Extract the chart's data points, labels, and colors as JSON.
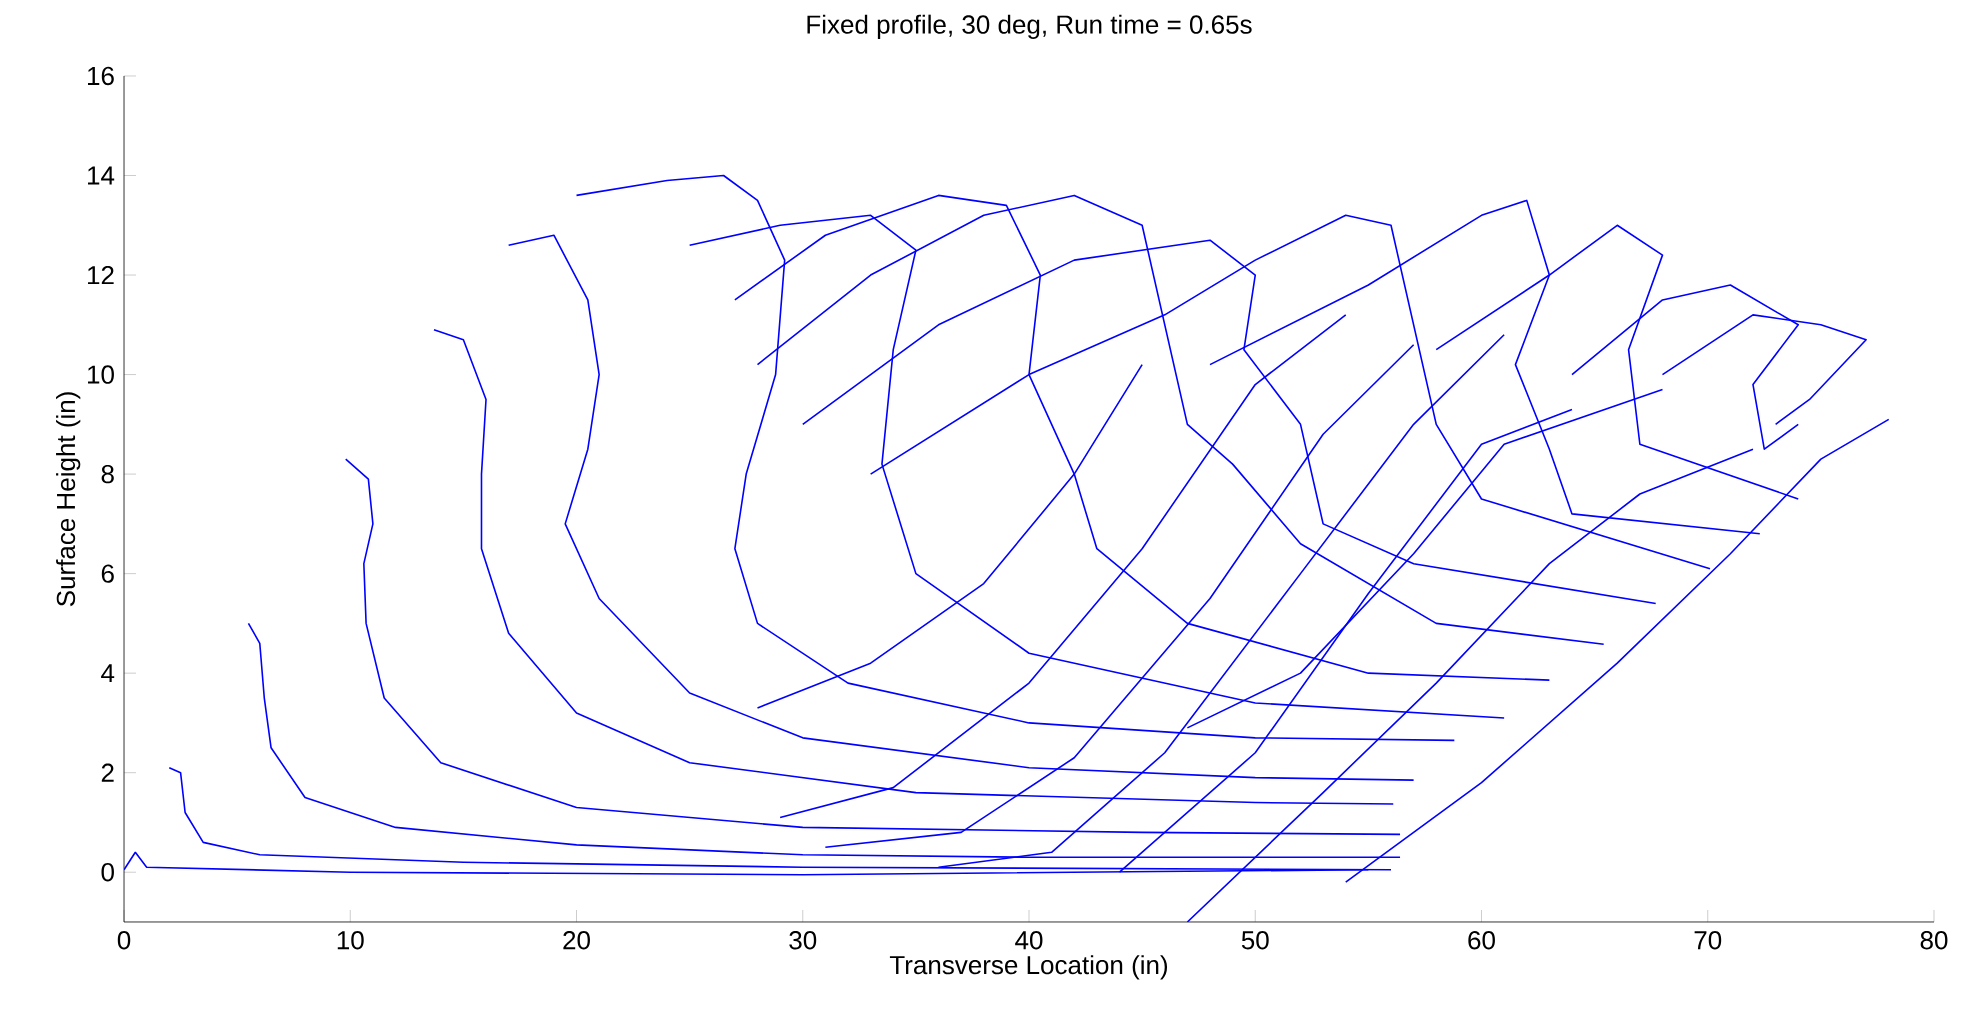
{
  "chart_data": {
    "type": "line",
    "title": "Fixed profile, 30 deg, Run time = 0.65s",
    "xlabel": "Transverse Location (in)",
    "ylabel": "Surface Height (in)",
    "xlim": [
      0,
      80
    ],
    "ylim": [
      -1,
      16
    ],
    "xticks": [
      0,
      10,
      20,
      30,
      40,
      50,
      60,
      70,
      80
    ],
    "yticks": [
      0,
      2,
      4,
      6,
      8,
      10,
      12,
      14,
      16
    ],
    "color": "#0000ff",
    "series": [
      {
        "x": [
          0,
          0.5,
          1,
          10,
          30,
          55
        ],
        "values": [
          0.05,
          0.4,
          0.1,
          0,
          -0.05,
          0.05
        ]
      },
      {
        "x": [
          2.0,
          2.5,
          2.7,
          3.5,
          6,
          15,
          30,
          56
        ],
        "values": [
          2.1,
          2.0,
          1.2,
          0.6,
          0.35,
          0.2,
          0.1,
          0.05
        ]
      },
      {
        "x": [
          5.5,
          6,
          6.2,
          6.5,
          8,
          12,
          20,
          30,
          40,
          56.4
        ],
        "values": [
          5.0,
          4.6,
          3.5,
          2.5,
          1.5,
          0.9,
          0.55,
          0.35,
          0.3,
          0.3
        ]
      },
      {
        "x": [
          9.8,
          10.8,
          11,
          10.6,
          10.7,
          11.5,
          14,
          20,
          30,
          45,
          56.4
        ],
        "values": [
          8.3,
          7.9,
          7,
          6.2,
          5.0,
          3.5,
          2.2,
          1.3,
          0.9,
          0.8,
          0.76
        ]
      },
      {
        "x": [
          13.7,
          15,
          16,
          15.8,
          15.8,
          17,
          20,
          25,
          35,
          50,
          56.1
        ],
        "values": [
          10.9,
          10.7,
          9.5,
          8.0,
          6.5,
          4.8,
          3.2,
          2.2,
          1.6,
          1.4,
          1.37
        ]
      },
      {
        "x": [
          17,
          19,
          20.5,
          21,
          20.5,
          19.5,
          21,
          25,
          30,
          40,
          50,
          57
        ],
        "values": [
          12.6,
          12.8,
          11.5,
          10,
          8.5,
          7,
          5.5,
          3.6,
          2.7,
          2.1,
          1.9,
          1.85
        ]
      },
      {
        "x": [
          20,
          24,
          26.5,
          28,
          29.2,
          28.8,
          27.5,
          27,
          28,
          32,
          40,
          50,
          58.8
        ],
        "values": [
          13.6,
          13.9,
          14.0,
          13.5,
          12.3,
          10.0,
          8.0,
          6.5,
          5.0,
          3.8,
          3.0,
          2.7,
          2.65
        ]
      },
      {
        "x": [
          25,
          29,
          33,
          35,
          34,
          33.5,
          35,
          40,
          50,
          61
        ],
        "values": [
          12.6,
          13.0,
          13.2,
          12.5,
          10.5,
          8.2,
          6.0,
          4.4,
          3.4,
          3.1
        ]
      },
      {
        "x": [
          27,
          31,
          36,
          39,
          40.5,
          40,
          42,
          43,
          47,
          55,
          63
        ],
        "values": [
          11.5,
          12.8,
          13.6,
          13.4,
          12.0,
          10.0,
          8.0,
          6.5,
          5.0,
          4.0,
          3.86
        ]
      },
      {
        "x": [
          28,
          33,
          38,
          42,
          45,
          46,
          47,
          49,
          52,
          58,
          65.4
        ],
        "values": [
          10.2,
          12.0,
          13.2,
          13.6,
          13.0,
          11.0,
          9.0,
          8.2,
          6.6,
          5.0,
          4.58
        ]
      },
      {
        "x": [
          30,
          36,
          42,
          48,
          50,
          49.5,
          52,
          53,
          57,
          67.7
        ],
        "values": [
          9.0,
          11.0,
          12.3,
          12.7,
          12.0,
          10.5,
          9.0,
          7.0,
          6.2,
          5.4
        ]
      },
      {
        "x": [
          33,
          40,
          46,
          50,
          54,
          56,
          57,
          58,
          60,
          70.1
        ],
        "values": [
          8.0,
          10.0,
          11.2,
          12.3,
          13.2,
          13.0,
          11.0,
          9.0,
          7.5,
          6.1
        ]
      },
      {
        "x": [
          48,
          55,
          60,
          62,
          63,
          61.5,
          63,
          64,
          72.3
        ],
        "values": [
          10.2,
          11.8,
          13.2,
          13.5,
          12.0,
          10.2,
          8.5,
          7.2,
          6.8
        ]
      },
      {
        "x": [
          58,
          63,
          66,
          68,
          66.5,
          67,
          74
        ],
        "values": [
          10.5,
          12.0,
          13.0,
          12.4,
          10.5,
          8.6,
          7.5
        ]
      },
      {
        "x": [
          64,
          68,
          71,
          74,
          72,
          72.5,
          74
        ],
        "values": [
          10.0,
          11.5,
          11.8,
          11.0,
          9.8,
          8.5,
          9.0
        ]
      },
      {
        "x": [
          68,
          72,
          75,
          77,
          74.5,
          73
        ],
        "values": [
          10.0,
          11.2,
          11.0,
          10.7,
          9.5,
          9.0
        ]
      },
      {
        "x": [
          28,
          33,
          38,
          42,
          45
        ],
        "values": [
          3.3,
          4.2,
          5.8,
          8.0,
          10.2
        ]
      },
      {
        "x": [
          29,
          34,
          40,
          45,
          50,
          54
        ],
        "values": [
          1.1,
          1.7,
          3.8,
          6.5,
          9.8,
          11.2
        ]
      },
      {
        "x": [
          31,
          37,
          42,
          48,
          53,
          57
        ],
        "values": [
          0.5,
          0.8,
          2.3,
          5.5,
          8.8,
          10.6
        ]
      },
      {
        "x": [
          36,
          41,
          46,
          52,
          57,
          61
        ],
        "values": [
          0.1,
          0.4,
          2.4,
          6.0,
          9.0,
          10.8
        ]
      },
      {
        "x": [
          44,
          50,
          55,
          60,
          64
        ],
        "values": [
          0.0,
          2.4,
          5.6,
          8.6,
          9.3
        ]
      },
      {
        "x": [
          47,
          52,
          57,
          61,
          68
        ],
        "values": [
          2.9,
          4.0,
          6.4,
          8.6,
          9.7
        ]
      },
      {
        "x": [
          47,
          53,
          58,
          63,
          67,
          72
        ],
        "values": [
          -1,
          1.6,
          3.8,
          6.2,
          7.6,
          8.5
        ]
      },
      {
        "x": [
          54,
          60,
          66,
          71,
          75,
          78
        ],
        "values": [
          -0.2,
          1.8,
          4.2,
          6.4,
          8.3,
          9.1
        ]
      }
    ]
  }
}
